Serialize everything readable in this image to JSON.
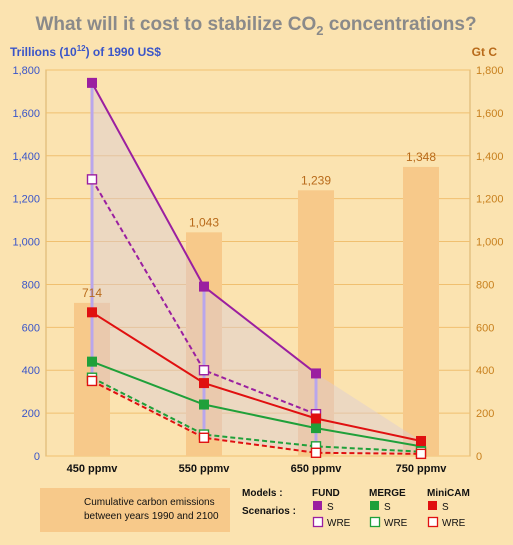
{
  "chart_data": {
    "type": "line",
    "title_main": "What will it cost to stabilize CO",
    "title_sub": "2",
    "title_end": " concentrations?",
    "ylabel_left": "Trillions (10",
    "ylabel_left_sup": "12",
    "ylabel_left_end": ") of 1990 US$",
    "ylabel_right": "Gt C",
    "categories": [
      "450 ppmv",
      "550 ppmv",
      "650 ppmv",
      "750 ppmv"
    ],
    "ylim": [
      0,
      1800
    ],
    "yticks": [
      "0",
      "200",
      "400",
      "600",
      "800",
      "1,000",
      "1,200",
      "1,400",
      "1,600",
      "1,800"
    ],
    "bars": {
      "name": "Cumulative carbon emissions between years 1990 and 2100",
      "values": [
        714,
        1043,
        1239,
        1348
      ],
      "labels": [
        "714",
        "1,043",
        "1,239",
        "1,348"
      ]
    },
    "series": [
      {
        "name": "FUND S",
        "model": "FUND",
        "scenario": "S",
        "color": "#9b1fa0",
        "dashed": false,
        "filled": true,
        "values": [
          1740,
          790,
          385,
          null
        ]
      },
      {
        "name": "FUND WRE",
        "model": "FUND",
        "scenario": "WRE",
        "color": "#9b1fa0",
        "dashed": true,
        "filled": false,
        "values": [
          1290,
          400,
          195,
          null
        ]
      },
      {
        "name": "MERGE S",
        "model": "MERGE",
        "scenario": "S",
        "color": "#1fa03a",
        "dashed": false,
        "filled": true,
        "values": [
          440,
          240,
          130,
          45
        ]
      },
      {
        "name": "MERGE WRE",
        "model": "MERGE",
        "scenario": "WRE",
        "color": "#1fa03a",
        "dashed": true,
        "filled": false,
        "values": [
          365,
          100,
          45,
          20
        ]
      },
      {
        "name": "MiniCAM S",
        "model": "MiniCAM",
        "scenario": "S",
        "color": "#e01010",
        "dashed": false,
        "filled": true,
        "values": [
          670,
          340,
          175,
          70
        ]
      },
      {
        "name": "MiniCAM WRE",
        "model": "MiniCAM",
        "scenario": "WRE",
        "color": "#e01010",
        "dashed": true,
        "filled": false,
        "values": [
          350,
          85,
          15,
          10
        ]
      }
    ],
    "legend": {
      "bar_text_1": "Cumulative carbon emissions",
      "bar_text_2": "between years 1990 and 2100",
      "models_label": "Models :",
      "scenarios_label": "Scenarios :",
      "models": [
        "FUND",
        "MERGE",
        "MiniCAM"
      ],
      "scenario_s": "S",
      "scenario_wre": "WRE"
    }
  }
}
